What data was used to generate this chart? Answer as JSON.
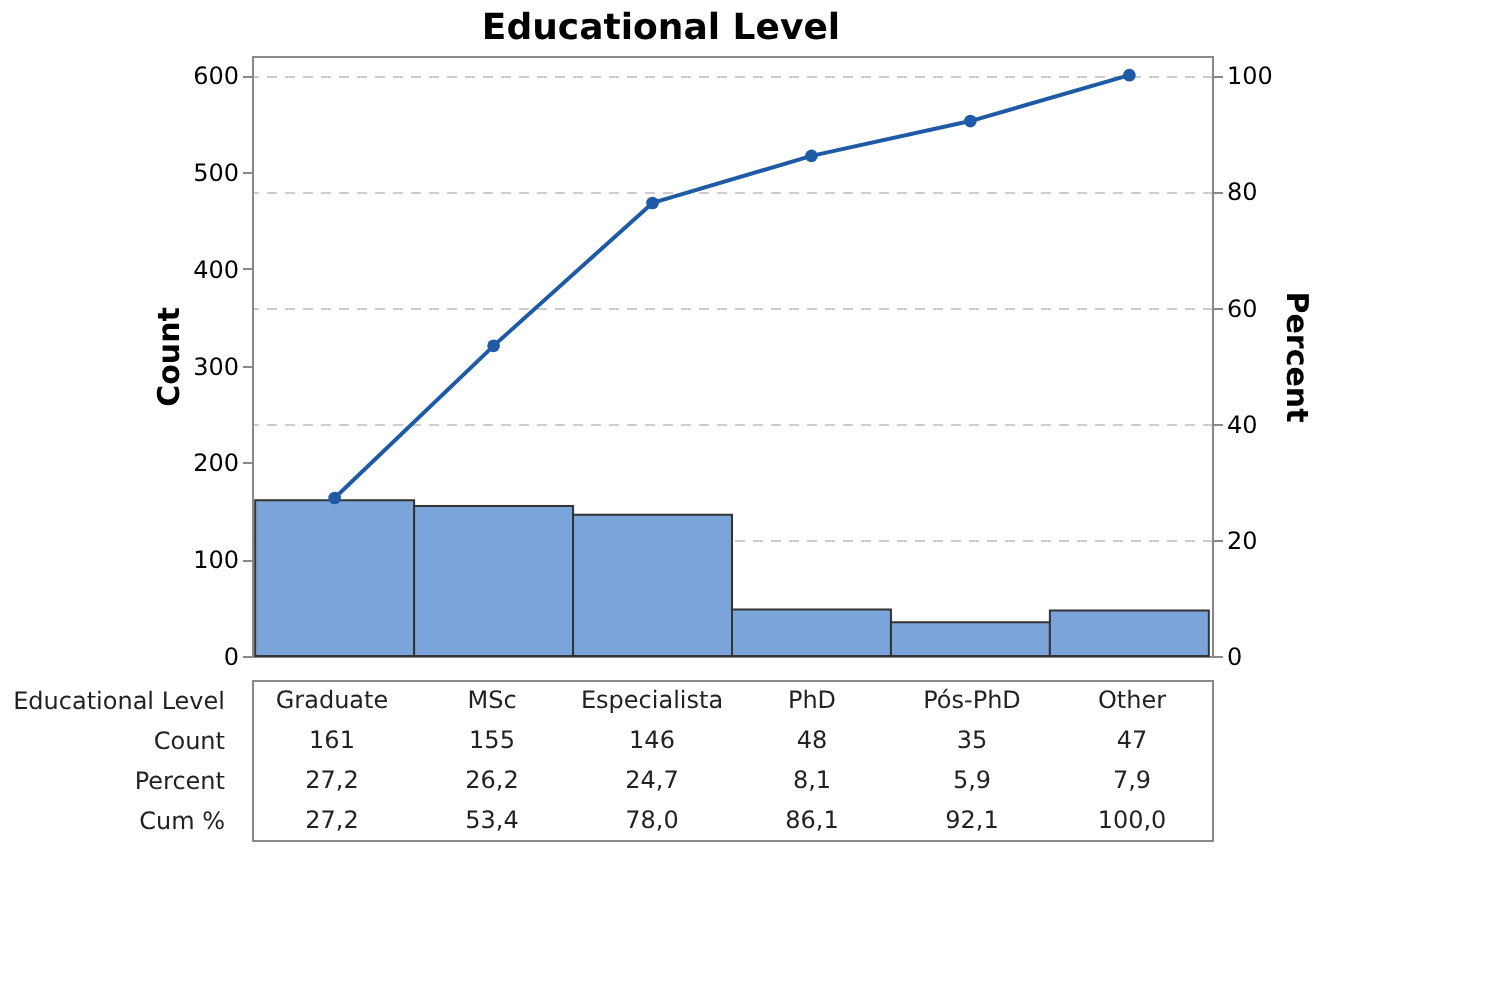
{
  "chart_data": {
    "type": "bar",
    "title": "Educational Level",
    "xlabel": "Educational Level",
    "ylabel": "Count",
    "y2label": "Percent",
    "categories": [
      "Graduate",
      "MSc",
      "Especialista",
      "PhD",
      "Pós-PhD",
      "Other"
    ],
    "series": [
      {
        "color": "#7ba5da",
        "values": [
          161,
          155,
          146,
          48,
          35,
          47
        ],
        "value_labels": [
          "161",
          "155",
          "146",
          "48",
          "35",
          "47"
        ]
      },
      {
        "type": "line",
        "axis": "y2",
        "color": "#1f5aa6",
        "values": [
          27.2,
          53.4,
          78.0,
          86.1,
          92.1,
          100.0
        ],
        "value_labels": [
          "27,2",
          "53,4",
          "78,0",
          "86,1",
          "92,1",
          "100,0"
        ]
      }
    ],
    "ylim": [
      0,
      620
    ],
    "yticks": [
      0,
      100,
      200,
      300,
      400,
      500,
      600
    ],
    "y2lim": [
      0,
      103.3
    ],
    "y2ticks": [
      0,
      20,
      40,
      60,
      80,
      100
    ],
    "grid": "y",
    "marker": "circle",
    "line_style": "solid",
    "annotations": [
      "Count",
      "Percent",
      "Cum %",
      "27,2",
      "26,2",
      "24,7",
      "8,1",
      "5,9",
      "7,9"
    ]
  }
}
